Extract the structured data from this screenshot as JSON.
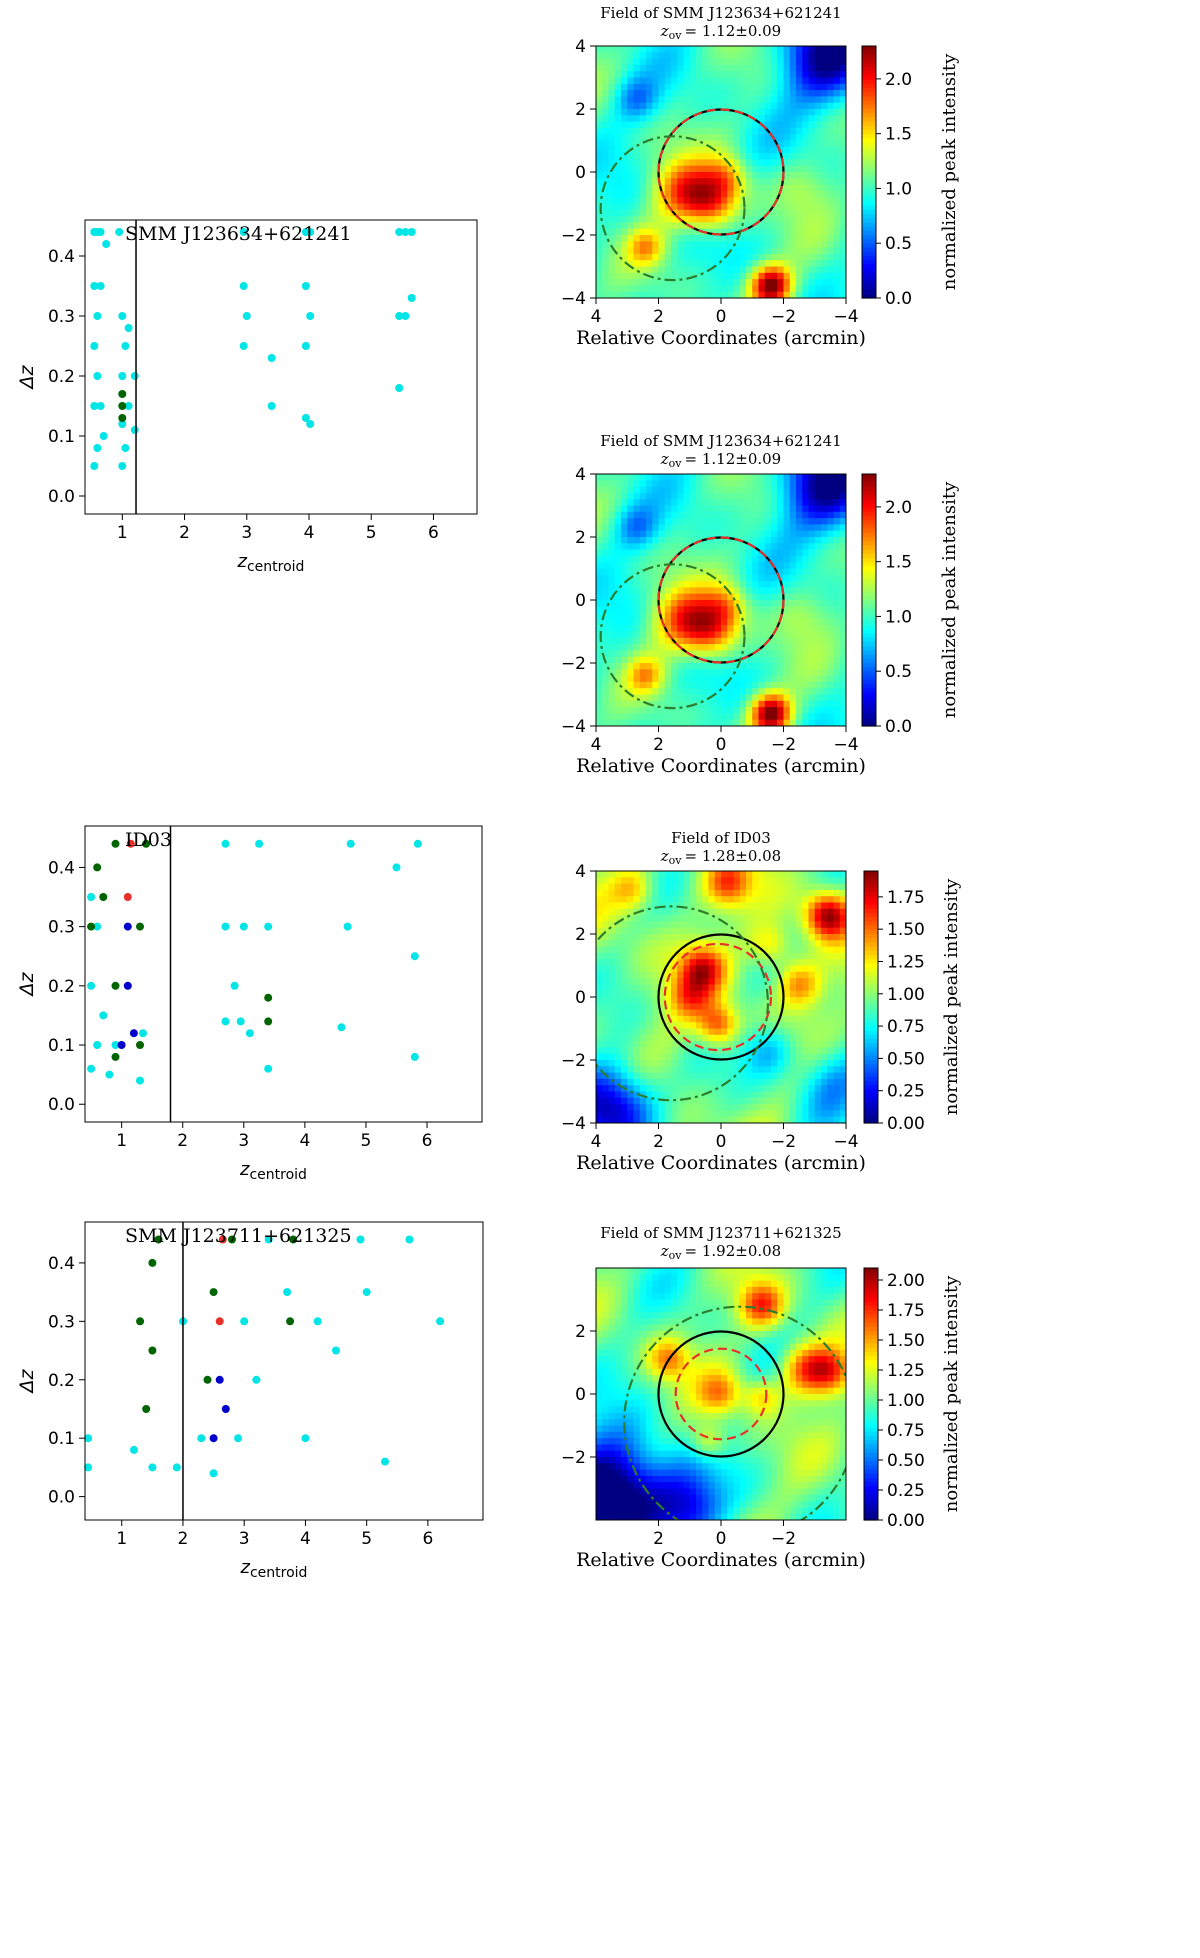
{
  "chart_data": [
    {
      "type": "scatter",
      "title": "SMM J123634+621241",
      "xlabel": "z",
      "xlabel_sub": "centroid",
      "ylabel": "Δz",
      "xlim": [
        0.4,
        6.7
      ],
      "ylim": [
        -0.03,
        0.46
      ],
      "xticks": [
        "1",
        "2",
        "3",
        "4",
        "5",
        "6"
      ],
      "yticks": [
        "0.0",
        "0.1",
        "0.2",
        "0.3",
        "0.4"
      ],
      "vline_x": 1.22,
      "grid": false,
      "series": [
        {
          "color": "#00e5e5",
          "points": [
            [
              0.55,
              0.05
            ],
            [
              0.55,
              0.15
            ],
            [
              0.55,
              0.25
            ],
            [
              0.55,
              0.35
            ],
            [
              0.55,
              0.44
            ],
            [
              0.6,
              0.08
            ],
            [
              0.6,
              0.2
            ],
            [
              0.6,
              0.3
            ],
            [
              0.6,
              0.44
            ],
            [
              0.65,
              0.15
            ],
            [
              0.65,
              0.35
            ],
            [
              0.65,
              0.44
            ],
            [
              0.7,
              0.1
            ],
            [
              0.74,
              0.42
            ],
            [
              0.95,
              0.44
            ],
            [
              1.0,
              0.05
            ],
            [
              1.0,
              0.12
            ],
            [
              1.0,
              0.2
            ],
            [
              1.0,
              0.3
            ],
            [
              1.05,
              0.08
            ],
            [
              1.05,
              0.25
            ],
            [
              1.1,
              0.15
            ],
            [
              1.1,
              0.28
            ],
            [
              1.2,
              0.11
            ],
            [
              1.2,
              0.2
            ],
            [
              2.95,
              0.25
            ],
            [
              2.95,
              0.35
            ],
            [
              2.95,
              0.44
            ],
            [
              3.0,
              0.3
            ],
            [
              3.4,
              0.15
            ],
            [
              3.4,
              0.23
            ],
            [
              3.95,
              0.13
            ],
            [
              3.95,
              0.25
            ],
            [
              3.95,
              0.35
            ],
            [
              3.95,
              0.44
            ],
            [
              4.02,
              0.12
            ],
            [
              4.02,
              0.3
            ],
            [
              4.02,
              0.44
            ],
            [
              5.45,
              0.18
            ],
            [
              5.45,
              0.3
            ],
            [
              5.45,
              0.44
            ],
            [
              5.55,
              0.3
            ],
            [
              5.55,
              0.44
            ],
            [
              5.65,
              0.33
            ],
            [
              5.65,
              0.44
            ]
          ]
        },
        {
          "color": "#006400",
          "points": [
            [
              1.0,
              0.13
            ],
            [
              1.0,
              0.15
            ],
            [
              1.0,
              0.17
            ]
          ]
        }
      ]
    },
    {
      "type": "scatter",
      "title": "ID03",
      "xlabel": "z",
      "xlabel_sub": "centroid",
      "ylabel": "Δz",
      "xlim": [
        0.4,
        6.9
      ],
      "ylim": [
        -0.03,
        0.47
      ],
      "xticks": [
        "1",
        "2",
        "3",
        "4",
        "5",
        "6"
      ],
      "yticks": [
        "0.0",
        "0.1",
        "0.2",
        "0.3",
        "0.4"
      ],
      "vline_x": 1.8,
      "grid": false,
      "series": [
        {
          "color": "#00e5e5",
          "points": [
            [
              0.5,
              0.06
            ],
            [
              0.5,
              0.2
            ],
            [
              0.5,
              0.35
            ],
            [
              0.6,
              0.1
            ],
            [
              0.6,
              0.3
            ],
            [
              0.7,
              0.15
            ],
            [
              0.8,
              0.05
            ],
            [
              0.9,
              0.1
            ],
            [
              1.3,
              0.04
            ],
            [
              1.35,
              0.12
            ],
            [
              2.7,
              0.14
            ],
            [
              2.7,
              0.3
            ],
            [
              2.7,
              0.44
            ],
            [
              2.85,
              0.2
            ],
            [
              2.95,
              0.14
            ],
            [
              3.0,
              0.3
            ],
            [
              3.1,
              0.12
            ],
            [
              3.25,
              0.44
            ],
            [
              3.4,
              0.06
            ],
            [
              3.4,
              0.3
            ],
            [
              4.6,
              0.13
            ],
            [
              4.7,
              0.3
            ],
            [
              4.75,
              0.44
            ],
            [
              5.5,
              0.4
            ],
            [
              5.8,
              0.08
            ],
            [
              5.8,
              0.25
            ],
            [
              5.85,
              0.44
            ]
          ]
        },
        {
          "color": "#006400",
          "points": [
            [
              0.5,
              0.3
            ],
            [
              0.6,
              0.4
            ],
            [
              0.7,
              0.35
            ],
            [
              0.9,
              0.08
            ],
            [
              0.9,
              0.2
            ],
            [
              0.9,
              0.44
            ],
            [
              1.3,
              0.1
            ],
            [
              1.3,
              0.3
            ],
            [
              1.4,
              0.44
            ],
            [
              3.4,
              0.14
            ],
            [
              3.4,
              0.18
            ]
          ]
        },
        {
          "color": "#0000cd",
          "points": [
            [
              1.0,
              0.1
            ],
            [
              1.1,
              0.2
            ],
            [
              1.1,
              0.3
            ],
            [
              1.2,
              0.12
            ]
          ]
        },
        {
          "color": "#e8302b",
          "points": [
            [
              1.1,
              0.35
            ],
            [
              1.15,
              0.44
            ]
          ]
        }
      ]
    },
    {
      "type": "scatter",
      "title": "SMM J123711+621325",
      "xlabel": "z",
      "xlabel_sub": "centroid",
      "ylabel": "Δz",
      "xlim": [
        0.4,
        6.9
      ],
      "ylim": [
        -0.04,
        0.47
      ],
      "xticks": [
        "1",
        "2",
        "3",
        "4",
        "5",
        "6"
      ],
      "yticks": [
        "0.0",
        "0.1",
        "0.2",
        "0.3",
        "0.4"
      ],
      "vline_x": 2.0,
      "grid": false,
      "series": [
        {
          "color": "#00e5e5",
          "points": [
            [
              0.45,
              0.05
            ],
            [
              0.45,
              0.1
            ],
            [
              1.2,
              0.08
            ],
            [
              1.5,
              0.05
            ],
            [
              1.9,
              0.05
            ],
            [
              2.0,
              0.3
            ],
            [
              2.3,
              0.1
            ],
            [
              2.5,
              0.04
            ],
            [
              2.9,
              0.1
            ],
            [
              3.0,
              0.3
            ],
            [
              3.2,
              0.2
            ],
            [
              3.4,
              0.44
            ],
            [
              3.7,
              0.35
            ],
            [
              4.0,
              0.1
            ],
            [
              4.2,
              0.3
            ],
            [
              4.5,
              0.25
            ],
            [
              4.9,
              0.44
            ],
            [
              5.3,
              0.06
            ],
            [
              5.0,
              0.35
            ],
            [
              5.7,
              0.44
            ],
            [
              6.2,
              0.3
            ]
          ]
        },
        {
          "color": "#006400",
          "points": [
            [
              1.3,
              0.3
            ],
            [
              1.4,
              0.15
            ],
            [
              1.5,
              0.4
            ],
            [
              1.6,
              0.44
            ],
            [
              1.5,
              0.25
            ],
            [
              2.4,
              0.2
            ],
            [
              2.5,
              0.35
            ],
            [
              2.8,
              0.44
            ],
            [
              3.75,
              0.3
            ],
            [
              3.8,
              0.44
            ]
          ]
        },
        {
          "color": "#0000cd",
          "points": [
            [
              2.5,
              0.1
            ],
            [
              2.6,
              0.2
            ],
            [
              2.7,
              0.15
            ]
          ]
        },
        {
          "color": "#e8302b",
          "points": [
            [
              2.6,
              0.3
            ],
            [
              2.65,
              0.44
            ]
          ]
        }
      ]
    },
    {
      "type": "heatmap",
      "title": "Field of SMM J123634+621241",
      "subtitle_sym": "z",
      "subtitle_sub": "ov",
      "subtitle_val": "= 1.12±0.09",
      "xlabel": "Relative Coordinates (arcmin)",
      "colorbar_label": "normalized peak intensity",
      "xlim": [
        4,
        -4
      ],
      "ylim": [
        -4,
        4
      ],
      "xticks": [
        "4",
        "2",
        "0",
        "−2",
        "−4"
      ],
      "yticks": [
        "4",
        "2",
        "0",
        "−2",
        "−4"
      ],
      "colorbar_ticks": [
        "0.0",
        "0.5",
        "1.0",
        "1.5",
        "2.0"
      ],
      "colorbar_max": 2.3,
      "circles": [
        {
          "color": "#000000",
          "style": "solid",
          "cx": 0.0,
          "cy": 0.0,
          "r": 2.0
        },
        {
          "color": "#e8302b",
          "style": "dashed",
          "cx": 0.0,
          "cy": 0.0,
          "r": 2.0
        },
        {
          "color": "#2d7d2d",
          "style": "dashdot",
          "cx": 1.55,
          "cy": -1.15,
          "r": 2.3
        }
      ],
      "peaks": [
        {
          "x": 1.2,
          "y": -0.6,
          "amp": 0.75,
          "w": 0.7
        },
        {
          "x": 0.3,
          "y": -1.0,
          "amp": 0.8,
          "w": 0.6
        },
        {
          "x": -0.2,
          "y": -0.2,
          "amp": 0.5,
          "w": 0.5
        },
        {
          "x": -1.6,
          "y": -3.6,
          "amp": 1.3,
          "w": 0.45
        },
        {
          "x": 2.4,
          "y": -2.4,
          "amp": 0.5,
          "w": 0.4
        },
        {
          "x": -3.4,
          "y": 3.6,
          "amp": -0.95,
          "w": 1.0
        },
        {
          "x": 2.7,
          "y": 2.3,
          "amp": -0.4,
          "w": 0.5
        },
        {
          "x": -2.6,
          "y": -0.5,
          "amp": 0.2,
          "w": 0.6
        }
      ]
    },
    {
      "type": "heatmap",
      "title": "Field of SMM J123634+621241",
      "subtitle_sym": "z",
      "subtitle_sub": "ov",
      "subtitle_val": "= 1.12±0.09",
      "xlabel": "Relative Coordinates (arcmin)",
      "colorbar_label": "normalized peak intensity",
      "xlim": [
        4,
        -4
      ],
      "ylim": [
        -4,
        4
      ],
      "xticks": [
        "4",
        "2",
        "0",
        "−2",
        "−4"
      ],
      "yticks": [
        "4",
        "2",
        "0",
        "−2",
        "−4"
      ],
      "colorbar_ticks": [
        "0.0",
        "0.5",
        "1.0",
        "1.5",
        "2.0"
      ],
      "colorbar_max": 2.3,
      "circles": [
        {
          "color": "#000000",
          "style": "solid",
          "cx": 0.0,
          "cy": 0.0,
          "r": 2.0
        },
        {
          "color": "#e8302b",
          "style": "dashed",
          "cx": 0.0,
          "cy": 0.0,
          "r": 2.0
        },
        {
          "color": "#2d7d2d",
          "style": "dashdot",
          "cx": 1.55,
          "cy": -1.15,
          "r": 2.3
        }
      ],
      "peaks": [
        {
          "x": 1.2,
          "y": -0.6,
          "amp": 0.75,
          "w": 0.7
        },
        {
          "x": 0.3,
          "y": -1.0,
          "amp": 0.8,
          "w": 0.6
        },
        {
          "x": -0.2,
          "y": -0.2,
          "amp": 0.5,
          "w": 0.5
        },
        {
          "x": -1.6,
          "y": -3.6,
          "amp": 1.3,
          "w": 0.45
        },
        {
          "x": 2.4,
          "y": -2.4,
          "amp": 0.5,
          "w": 0.4
        },
        {
          "x": -3.4,
          "y": 3.6,
          "amp": -0.95,
          "w": 1.0
        },
        {
          "x": 2.7,
          "y": 2.3,
          "amp": -0.4,
          "w": 0.5
        },
        {
          "x": -2.6,
          "y": -0.5,
          "amp": 0.2,
          "w": 0.6
        }
      ]
    },
    {
      "type": "heatmap",
      "title": "Field of ID03",
      "subtitle_sym": "z",
      "subtitle_sub": "ov",
      "subtitle_val": "= 1.28±0.08",
      "xlabel": "Relative Coordinates (arcmin)",
      "colorbar_label": "normalized peak intensity",
      "xlim": [
        4,
        -4
      ],
      "ylim": [
        -4,
        4
      ],
      "xticks": [
        "4",
        "2",
        "0",
        "−2",
        "−4"
      ],
      "yticks": [
        "4",
        "2",
        "0",
        "−2",
        "−4"
      ],
      "colorbar_ticks": [
        "0.00",
        "0.25",
        "0.50",
        "0.75",
        "1.00",
        "1.25",
        "1.50",
        "1.75"
      ],
      "colorbar_max": 1.95,
      "circles": [
        {
          "color": "#000000",
          "style": "solid",
          "cx": 0.0,
          "cy": 0.0,
          "r": 2.0
        },
        {
          "color": "#e8302b",
          "style": "dashed",
          "cx": 0.1,
          "cy": 0.0,
          "r": 1.7
        },
        {
          "color": "#2d7d2d",
          "style": "dashdot",
          "cx": 1.6,
          "cy": -0.2,
          "r": 3.1
        }
      ],
      "peaks": [
        {
          "x": 0.6,
          "y": 0.9,
          "amp": 0.65,
          "w": 0.5
        },
        {
          "x": 0.1,
          "y": -0.9,
          "amp": 0.6,
          "w": 0.45
        },
        {
          "x": 1.0,
          "y": 0.0,
          "amp": 0.4,
          "w": 0.5
        },
        {
          "x": -3.4,
          "y": 2.6,
          "amp": 0.9,
          "w": 0.5
        },
        {
          "x": -1.6,
          "y": 1.6,
          "amp": 0.4,
          "w": 0.5
        },
        {
          "x": -2.5,
          "y": 0.4,
          "amp": 0.5,
          "w": 0.5
        },
        {
          "x": 2.8,
          "y": 3.4,
          "amp": 0.4,
          "w": 0.5
        },
        {
          "x": -0.2,
          "y": 3.6,
          "amp": 0.5,
          "w": 0.5
        },
        {
          "x": 3.5,
          "y": -3.5,
          "amp": -1.0,
          "w": 1.0
        },
        {
          "x": -3.5,
          "y": -2.7,
          "amp": -0.5,
          "w": 0.9
        },
        {
          "x": -1.5,
          "y": -1.7,
          "amp": -0.4,
          "w": 0.6
        }
      ]
    },
    {
      "type": "heatmap",
      "title": "Field of SMM J123711+621325",
      "subtitle_sym": "z",
      "subtitle_sub": "ov",
      "subtitle_val": "= 1.92±0.08",
      "xlabel": "Relative Coordinates (arcmin)",
      "colorbar_label": "normalized peak intensity",
      "xlim": [
        4,
        -4
      ],
      "ylim": [
        -4,
        4
      ],
      "xticks": [
        "2",
        "0",
        "−2"
      ],
      "yticks": [
        "2",
        "0",
        "−2"
      ],
      "colorbar_ticks": [
        "0.00",
        "0.25",
        "0.50",
        "0.75",
        "1.00",
        "1.25",
        "1.50",
        "1.75",
        "2.00"
      ],
      "colorbar_max": 2.1,
      "circles": [
        {
          "color": "#000000",
          "style": "solid",
          "cx": 0.0,
          "cy": 0.0,
          "r": 2.0
        },
        {
          "color": "#e8302b",
          "style": "dashed",
          "cx": 0.0,
          "cy": 0.0,
          "r": 1.45
        },
        {
          "color": "#2d7d2d",
          "style": "dashdot",
          "cx": -0.6,
          "cy": -0.9,
          "r": 3.7
        }
      ],
      "peaks": [
        {
          "x": -1.3,
          "y": 2.8,
          "amp": 0.7,
          "w": 0.5
        },
        {
          "x": -2.7,
          "y": 0.8,
          "amp": 0.7,
          "w": 0.6
        },
        {
          "x": -3.5,
          "y": 0.7,
          "amp": 0.6,
          "w": 0.5
        },
        {
          "x": 0.0,
          "y": 0.0,
          "amp": 0.5,
          "w": 0.5
        },
        {
          "x": -1.3,
          "y": -0.1,
          "amp": 0.4,
          "w": 0.4
        },
        {
          "x": 0.4,
          "y": -1.5,
          "amp": 0.4,
          "w": 0.4
        },
        {
          "x": 1.7,
          "y": 1.1,
          "amp": 0.5,
          "w": 0.45
        },
        {
          "x": 3.5,
          "y": -3.3,
          "amp": -1.4,
          "w": 1.3
        },
        {
          "x": 1.0,
          "y": -3.6,
          "amp": -0.6,
          "w": 0.8
        }
      ]
    }
  ]
}
